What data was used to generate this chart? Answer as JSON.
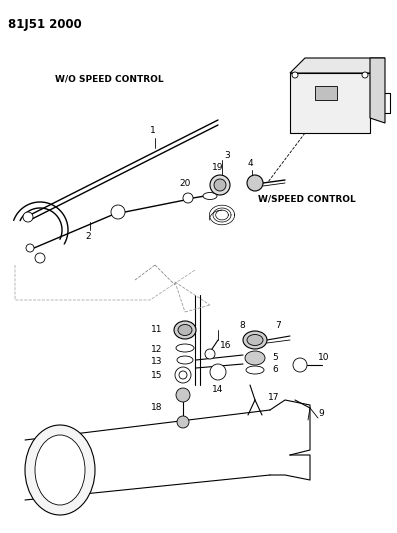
{
  "title": "81J51 2000",
  "label_wo_speed": "W/O SPEED CONTROL",
  "label_w_speed": "W/SPEED CONTROL",
  "bg_color": "#ffffff",
  "line_color": "#000000",
  "text_color": "#000000",
  "fig_width": 3.97,
  "fig_height": 5.33,
  "dpi": 100,
  "title_fontsize": 8.5,
  "label_fontsize": 6.5,
  "part_label_fontsize": 6.5
}
